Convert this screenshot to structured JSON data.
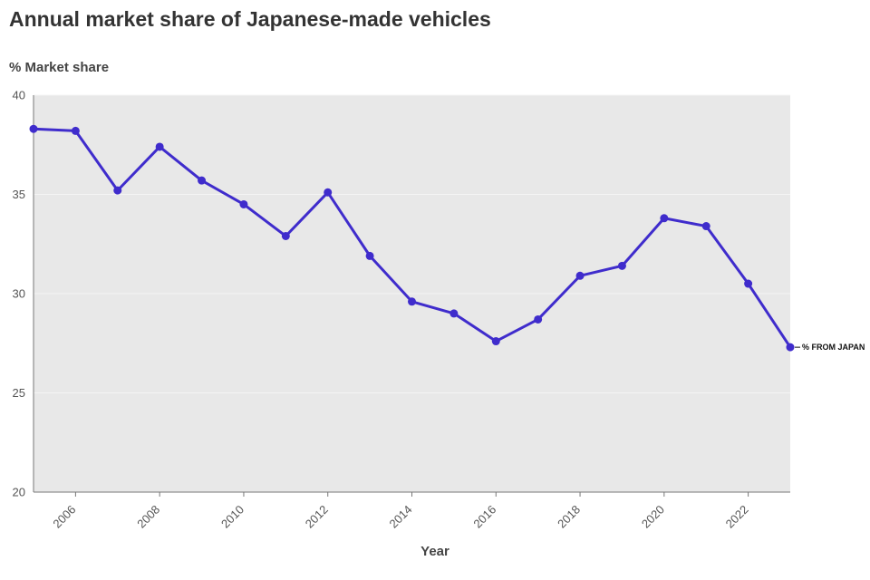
{
  "chart_data": {
    "type": "line",
    "title": "Annual market share of Japanese-made vehicles",
    "ylabel": "% Market share",
    "xlabel": "Year",
    "ylim": [
      20,
      40
    ],
    "xlim": [
      2005,
      2023
    ],
    "y_ticks": [
      20,
      25,
      30,
      35,
      40
    ],
    "x_ticks": [
      2006,
      2008,
      2010,
      2012,
      2014,
      2016,
      2018,
      2020,
      2022
    ],
    "grid": true,
    "background": "#e8e8e8",
    "series": [
      {
        "name": "% FROM JAPAN",
        "color": "#3f2ccc",
        "x": [
          2005,
          2006,
          2007,
          2008,
          2009,
          2010,
          2011,
          2012,
          2013,
          2014,
          2015,
          2016,
          2017,
          2018,
          2019,
          2020,
          2021,
          2022,
          2023
        ],
        "values": [
          38.3,
          38.2,
          35.2,
          37.4,
          35.7,
          34.5,
          32.9,
          35.1,
          31.9,
          29.6,
          29.0,
          27.6,
          28.7,
          30.9,
          31.4,
          33.8,
          33.4,
          30.5,
          27.3
        ]
      }
    ]
  }
}
